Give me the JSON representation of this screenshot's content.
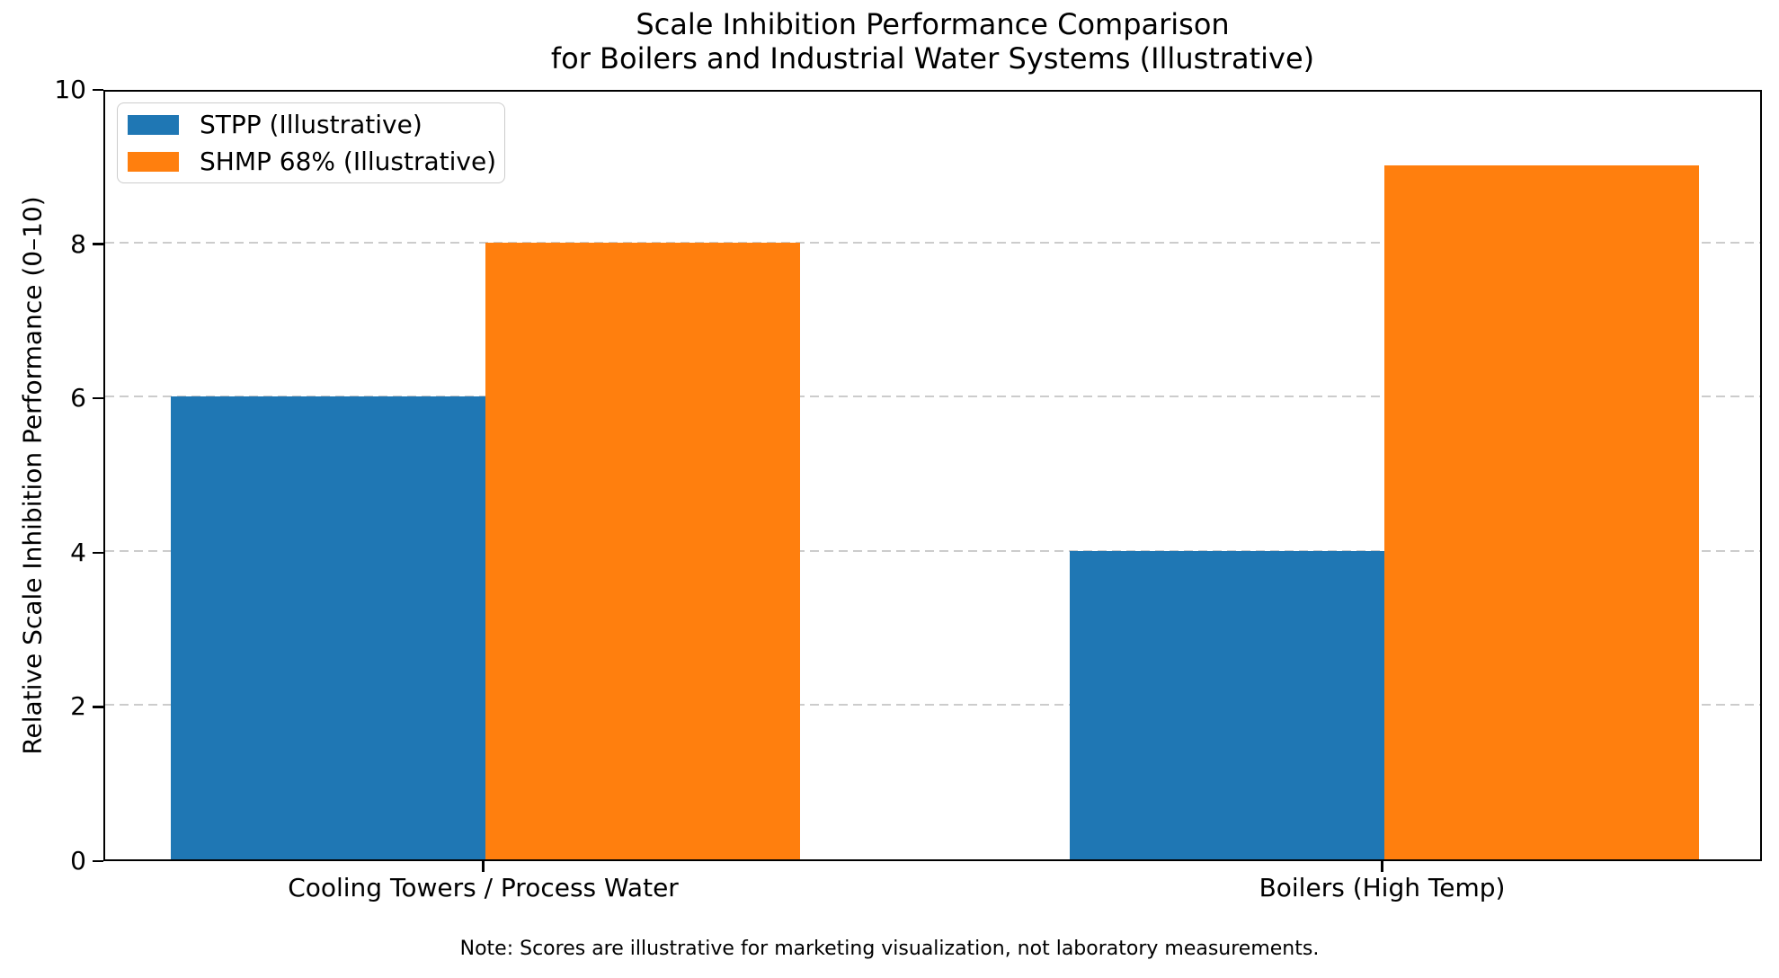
{
  "chart_data": {
    "type": "bar",
    "title": "Scale Inhibition Performance Comparison\nfor Boilers and Industrial Water Systems (Illustrative)",
    "ylabel": "Relative Scale Inhibition Performance (0–10)",
    "xlabel": "",
    "categories": [
      "Cooling Towers / Process Water",
      "Boilers (High Temp)"
    ],
    "series": [
      {
        "name": "STPP (Illustrative)",
        "color": "#1f77b4",
        "values": [
          6,
          4
        ]
      },
      {
        "name": "SHMP 68% (Illustrative)",
        "color": "#ff7f0e",
        "values": [
          8,
          9
        ]
      }
    ],
    "ylim": [
      0,
      10
    ],
    "xlim": [
      -0.4225,
      1.4225
    ],
    "yticks": [
      0,
      2,
      4,
      6,
      8,
      10
    ],
    "bar_width": 0.35,
    "grid": "horizontal-dashed",
    "legend_position": "upper-left"
  },
  "note": "Note: Scores are illustrative for marketing visualization, not laboratory measurements.",
  "colors": {
    "grid": "#cccccc",
    "spine": "#000000",
    "background": "#ffffff",
    "legend_border": "#cccccc",
    "text": "#000000"
  }
}
